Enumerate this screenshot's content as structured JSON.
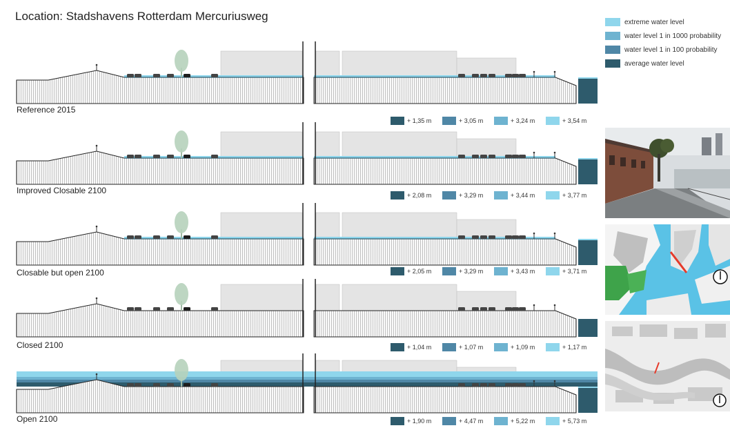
{
  "title": "Location: Stadshavens Rotterdam Mercuriusweg",
  "colors": {
    "extreme": "#8fd6ec",
    "p1000": "#6eb3d0",
    "p100": "#4f87a6",
    "average": "#2e5b6c"
  },
  "legend": [
    {
      "label": "extreme water level",
      "color": "#8fd6ec"
    },
    {
      "label": "water level 1 in 1000 probability",
      "color": "#6eb3d0"
    },
    {
      "label": "water level 1 in 100 probability",
      "color": "#4f87a6"
    },
    {
      "label": "average water level",
      "color": "#2e5b6c"
    }
  ],
  "scenarios": [
    {
      "name": "Reference 2015",
      "levels": [
        "+ 1,35 m",
        "+ 3,05 m",
        "+ 3,24 m",
        "+ 3,54 m"
      ]
    },
    {
      "name": "Improved Closable 2100",
      "levels": [
        "+ 2,08 m",
        "+ 3,29 m",
        "+ 3,44 m",
        "+ 3,77 m"
      ]
    },
    {
      "name": "Closable but open 2100",
      "levels": [
        "+ 2,05 m",
        "+ 3,29 m",
        "+ 3,43 m",
        "+ 3,71 m"
      ]
    },
    {
      "name": "Closed 2100",
      "levels": [
        "+ 1,04 m",
        "+ 1,07 m",
        "+ 1,09 m",
        "+ 1,17 m"
      ]
    },
    {
      "name": "Open 2100",
      "levels": [
        "+ 1,90 m",
        "+ 4,47 m",
        "+ 5,22 m",
        "+ 5,73 m"
      ]
    }
  ],
  "images": {
    "photo": "street-photo",
    "map1": "location-map-aerial",
    "map2": "location-map-overview"
  }
}
